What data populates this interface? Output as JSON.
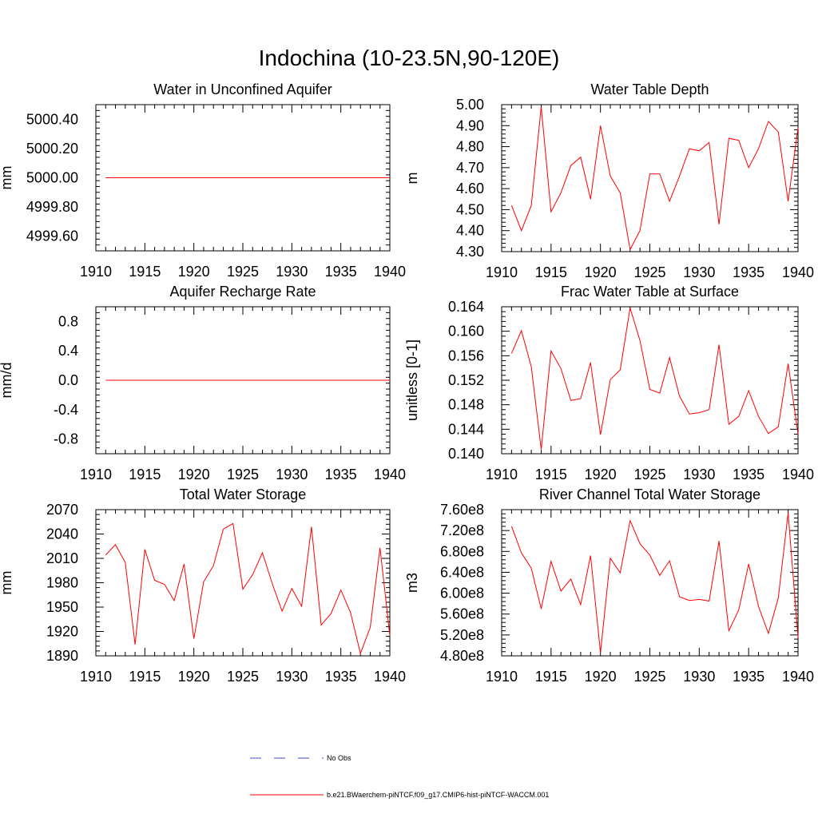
{
  "figure": {
    "title": "Indochina (10-23.5N,90-120E)"
  },
  "legend": {
    "entries": [
      {
        "label": "No Obs",
        "color": "#3b4bc8",
        "style": "dashed"
      },
      {
        "label": "b.e21.BWaerchem-piNTCF.f09_g17.CMIP6-hist-piNTCF-WACCM.001",
        "color": "#ff0000",
        "style": "solid"
      }
    ]
  },
  "chart_data": [
    {
      "type": "line",
      "title": "Water in Unconfined Aquifer",
      "ylabel": "mm",
      "xlim": [
        1910,
        1940
      ],
      "ylim": [
        4999.5,
        5000.5
      ],
      "xticks": [
        1910,
        1915,
        1920,
        1925,
        1930,
        1935,
        1940
      ],
      "yticks": [
        4999.6,
        4999.8,
        5000.0,
        5000.2,
        5000.4
      ],
      "ytick_labels": [
        "4999.60",
        "4999.80",
        "5000.00",
        "5000.20",
        "5000.40"
      ],
      "x": [
        1911,
        1912,
        1913,
        1914,
        1915,
        1916,
        1917,
        1918,
        1919,
        1920,
        1921,
        1922,
        1923,
        1924,
        1925,
        1926,
        1927,
        1928,
        1929,
        1930,
        1931,
        1932,
        1933,
        1934,
        1935,
        1936,
        1937,
        1938,
        1939,
        1940
      ],
      "series": [
        {
          "color": "#ff0000",
          "values": [
            5000,
            5000,
            5000,
            5000,
            5000,
            5000,
            5000,
            5000,
            5000,
            5000,
            5000,
            5000,
            5000,
            5000,
            5000,
            5000,
            5000,
            5000,
            5000,
            5000,
            5000,
            5000,
            5000,
            5000,
            5000,
            5000,
            5000,
            5000,
            5000,
            5000
          ]
        }
      ]
    },
    {
      "type": "line",
      "title": "Water Table Depth",
      "ylabel": "m",
      "xlim": [
        1910,
        1940
      ],
      "ylim": [
        4.3,
        5.0
      ],
      "xticks": [
        1910,
        1915,
        1920,
        1925,
        1930,
        1935,
        1940
      ],
      "yticks": [
        4.3,
        4.4,
        4.5,
        4.6,
        4.7,
        4.8,
        4.9,
        5.0
      ],
      "ytick_labels": [
        "4.30",
        "4.40",
        "4.50",
        "4.60",
        "4.70",
        "4.80",
        "4.90",
        "5.00"
      ],
      "x": [
        1911,
        1912,
        1913,
        1914,
        1915,
        1916,
        1917,
        1918,
        1919,
        1920,
        1921,
        1922,
        1923,
        1924,
        1925,
        1926,
        1927,
        1928,
        1929,
        1930,
        1931,
        1932,
        1933,
        1934,
        1935,
        1936,
        1937,
        1938,
        1939,
        1940
      ],
      "series": [
        {
          "color": "#ff0000",
          "values": [
            4.52,
            4.4,
            4.52,
            4.99,
            4.49,
            4.58,
            4.71,
            4.75,
            4.55,
            4.9,
            4.66,
            4.58,
            4.31,
            4.4,
            4.67,
            4.67,
            4.54,
            4.66,
            4.79,
            4.78,
            4.82,
            4.43,
            4.84,
            4.83,
            4.7,
            4.79,
            4.92,
            4.87,
            4.54,
            4.89
          ]
        }
      ]
    },
    {
      "type": "line",
      "title": "Aquifer Recharge Rate",
      "ylabel": "mm/d",
      "xlim": [
        1910,
        1940
      ],
      "ylim": [
        -1.0,
        1.0
      ],
      "xticks": [
        1910,
        1915,
        1920,
        1925,
        1930,
        1935,
        1940
      ],
      "yticks": [
        -0.8,
        -0.4,
        0.0,
        0.4,
        0.8
      ],
      "ytick_labels": [
        "-0.8",
        "-0.4",
        "0.0",
        "0.4",
        "0.8"
      ],
      "x": [
        1911,
        1912,
        1913,
        1914,
        1915,
        1916,
        1917,
        1918,
        1919,
        1920,
        1921,
        1922,
        1923,
        1924,
        1925,
        1926,
        1927,
        1928,
        1929,
        1930,
        1931,
        1932,
        1933,
        1934,
        1935,
        1936,
        1937,
        1938,
        1939,
        1940
      ],
      "series": [
        {
          "color": "#ff0000",
          "values": [
            0,
            0,
            0,
            0,
            0,
            0,
            0,
            0,
            0,
            0,
            0,
            0,
            0,
            0,
            0,
            0,
            0,
            0,
            0,
            0,
            0,
            0,
            0,
            0,
            0,
            0,
            0,
            0,
            0,
            0
          ]
        }
      ]
    },
    {
      "type": "line",
      "title": "Frac Water Table at Surface",
      "ylabel": "unitless [0-1]",
      "xlim": [
        1910,
        1940
      ],
      "ylim": [
        0.14,
        0.164
      ],
      "xticks": [
        1910,
        1915,
        1920,
        1925,
        1930,
        1935,
        1940
      ],
      "yticks": [
        0.14,
        0.144,
        0.148,
        0.152,
        0.156,
        0.16,
        0.164
      ],
      "ytick_labels": [
        "0.140",
        "0.144",
        "0.148",
        "0.152",
        "0.156",
        "0.160",
        "0.164"
      ],
      "x": [
        1911,
        1912,
        1913,
        1914,
        1915,
        1916,
        1917,
        1918,
        1919,
        1920,
        1921,
        1922,
        1923,
        1924,
        1925,
        1926,
        1927,
        1928,
        1929,
        1930,
        1931,
        1932,
        1933,
        1934,
        1935,
        1936,
        1937,
        1938,
        1939,
        1940
      ],
      "series": [
        {
          "color": "#ff0000",
          "values": [
            0.1564,
            0.1601,
            0.1542,
            0.1407,
            0.1568,
            0.1539,
            0.1487,
            0.149,
            0.1549,
            0.1431,
            0.1521,
            0.1537,
            0.1638,
            0.1585,
            0.1505,
            0.1499,
            0.1557,
            0.1494,
            0.1465,
            0.1467,
            0.1472,
            0.1578,
            0.1448,
            0.1461,
            0.1503,
            0.1461,
            0.1433,
            0.1444,
            0.1547,
            0.1432
          ]
        }
      ]
    },
    {
      "type": "line",
      "title": "Total Water Storage",
      "ylabel": "mm",
      "xlim": [
        1910,
        1940
      ],
      "ylim": [
        1890,
        2070
      ],
      "xticks": [
        1910,
        1915,
        1920,
        1925,
        1930,
        1935,
        1940
      ],
      "yticks": [
        1890,
        1920,
        1950,
        1980,
        2010,
        2040,
        2070
      ],
      "ytick_labels": [
        "1890",
        "1920",
        "1950",
        "1980",
        "2010",
        "2040",
        "2070"
      ],
      "x": [
        1911,
        1912,
        1913,
        1914,
        1915,
        1916,
        1917,
        1918,
        1919,
        1920,
        1921,
        1922,
        1923,
        1924,
        1925,
        1926,
        1927,
        1928,
        1929,
        1930,
        1931,
        1932,
        1933,
        1934,
        1935,
        1936,
        1937,
        1938,
        1939,
        1940
      ],
      "series": [
        {
          "color": "#ff0000",
          "values": [
            2014,
            2027,
            2005,
            1904,
            2021,
            1983,
            1978,
            1958,
            2003,
            1911,
            1981,
            2001,
            2046,
            2053,
            1972,
            1990,
            2017,
            1979,
            1945,
            1973,
            1951,
            2049,
            1928,
            1942,
            1971,
            1943,
            1893,
            1925,
            2023,
            1915
          ]
        }
      ]
    },
    {
      "type": "line",
      "title": "River Channel Total Water Storage",
      "ylabel": "m3",
      "xlim": [
        1910,
        1940
      ],
      "ylim": [
        480000000,
        760000000
      ],
      "xticks": [
        1910,
        1915,
        1920,
        1925,
        1930,
        1935,
        1940
      ],
      "yticks": [
        480000000,
        520000000,
        560000000,
        600000000,
        640000000,
        680000000,
        720000000,
        760000000
      ],
      "ytick_labels": [
        "4.80e8",
        "5.20e8",
        "5.60e8",
        "6.00e8",
        "6.40e8",
        "6.80e8",
        "7.20e8",
        "7.60e8"
      ],
      "x": [
        1911,
        1912,
        1913,
        1914,
        1915,
        1916,
        1917,
        1918,
        1919,
        1920,
        1921,
        1922,
        1923,
        1924,
        1925,
        1926,
        1927,
        1928,
        1929,
        1930,
        1931,
        1932,
        1933,
        1934,
        1935,
        1936,
        1937,
        1938,
        1939,
        1940
      ],
      "series": [
        {
          "color": "#ff0000",
          "values": [
            728000000,
            677000000,
            648000000,
            570000000,
            661000000,
            604000000,
            627000000,
            578000000,
            672000000,
            486000000,
            667000000,
            639000000,
            739000000,
            695000000,
            673000000,
            634000000,
            662000000,
            593000000,
            586000000,
            588000000,
            585000000,
            700000000,
            528000000,
            568000000,
            656000000,
            575000000,
            523000000,
            591000000,
            754000000,
            515000000
          ]
        }
      ]
    }
  ]
}
